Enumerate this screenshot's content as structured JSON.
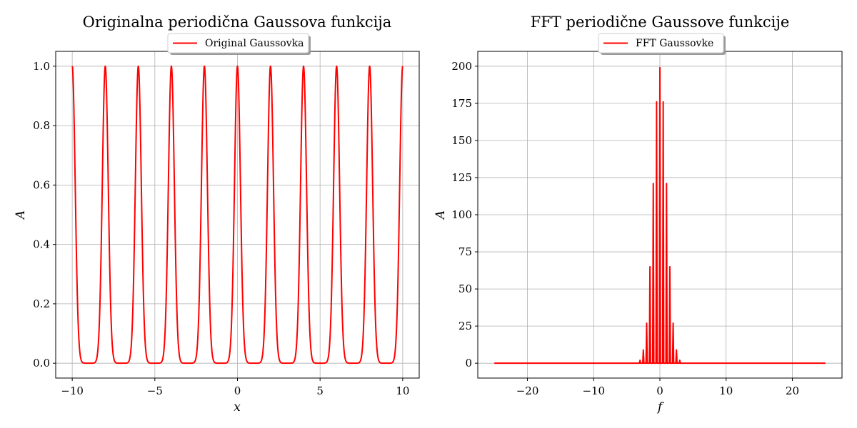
{
  "chart_data": [
    {
      "type": "line",
      "title": "Originalna periodična Gaussova funkcija",
      "xlabel": "x",
      "ylabel": "A",
      "xlim": [
        -11,
        11
      ],
      "ylim": [
        -0.05,
        1.05
      ],
      "xticks": [
        -10,
        -5,
        0,
        5,
        10
      ],
      "xtick_labels": [
        "−10",
        "−5",
        "0",
        "5",
        "10"
      ],
      "yticks": [
        0.0,
        0.2,
        0.4,
        0.6,
        0.8,
        1.0
      ],
      "ytick_labels": [
        "0.0",
        "0.2",
        "0.4",
        "0.6",
        "0.8",
        "1.0"
      ],
      "grid": true,
      "legend_position": "top-center",
      "series": [
        {
          "name": "Original Gaussovka",
          "color": "#ff0000",
          "peaks_x": [
            -10,
            -8,
            -6,
            -4,
            -2,
            0,
            2,
            4,
            6,
            8,
            10
          ],
          "peak_value": 1.0,
          "period": 2,
          "x_range": [
            -10,
            10
          ]
        }
      ]
    },
    {
      "type": "line",
      "title": "FFT periodične Gaussove funkcije",
      "xlabel": "f",
      "ylabel": "A",
      "xlim": [
        -27.5,
        27.5
      ],
      "ylim": [
        -10,
        210
      ],
      "xticks": [
        -20,
        -10,
        0,
        10,
        20
      ],
      "xtick_labels": [
        "−20",
        "−10",
        "0",
        "10",
        "20"
      ],
      "yticks": [
        0,
        25,
        50,
        75,
        100,
        125,
        150,
        175,
        200
      ],
      "ytick_labels": [
        "0",
        "25",
        "50",
        "75",
        "100",
        "125",
        "150",
        "175",
        "200"
      ],
      "grid": true,
      "legend_position": "top-center",
      "series": [
        {
          "name": "FFT Gaussovke",
          "color": "#ff0000",
          "x_range": [
            -25,
            25
          ],
          "spikes": [
            {
              "f": -3.0,
              "value": 2
            },
            {
              "f": -2.5,
              "value": 9
            },
            {
              "f": -2.0,
              "value": 27
            },
            {
              "f": -1.5,
              "value": 65
            },
            {
              "f": -1.0,
              "value": 121
            },
            {
              "f": -0.5,
              "value": 176
            },
            {
              "f": 0.0,
              "value": 199
            },
            {
              "f": 0.5,
              "value": 176
            },
            {
              "f": 1.0,
              "value": 121
            },
            {
              "f": 1.5,
              "value": 65
            },
            {
              "f": 2.0,
              "value": 27
            },
            {
              "f": 2.5,
              "value": 9
            },
            {
              "f": 3.0,
              "value": 2
            }
          ]
        }
      ]
    }
  ]
}
